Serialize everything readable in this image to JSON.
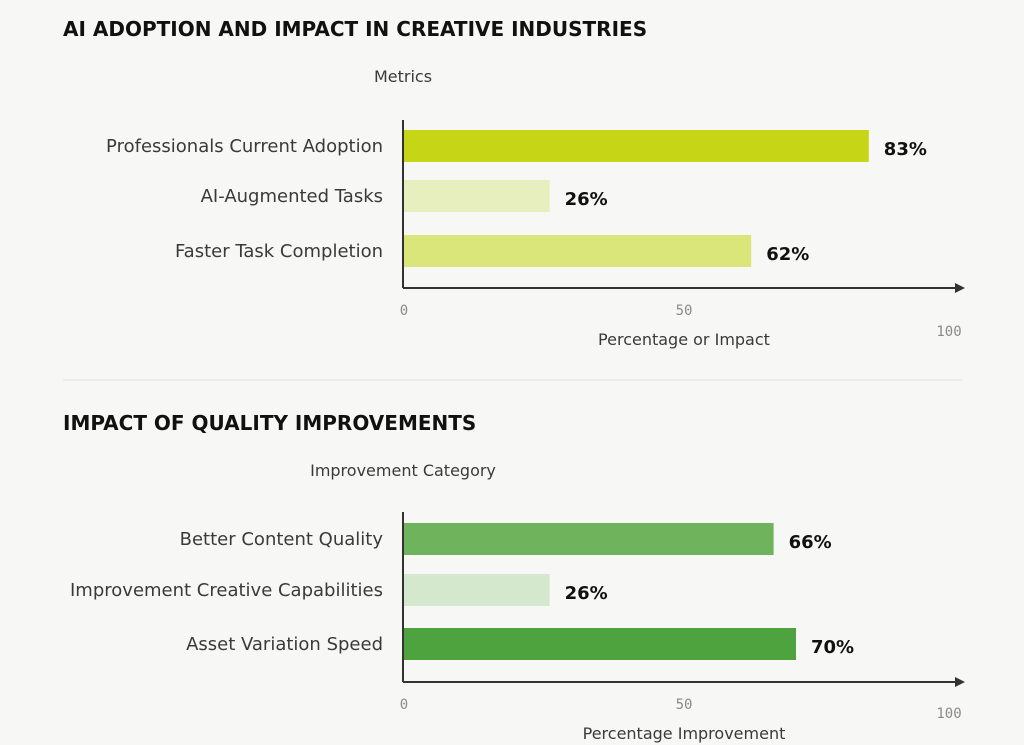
{
  "chart_data": [
    {
      "type": "bar",
      "orientation": "horizontal",
      "title": "AI ADOPTION AND IMPACT IN CREATIVE INDUSTRIES",
      "ylabel": "Metrics",
      "xlabel": "Percentage or Impact",
      "xlim": [
        0,
        100
      ],
      "ticks": [
        "0",
        "50",
        "100"
      ],
      "categories": [
        "Professionals Current Adoption",
        "AI-Augmented Tasks",
        "Faster Task Completion"
      ],
      "values": [
        83,
        26,
        62
      ],
      "value_labels": [
        "83%",
        "26%",
        "62%"
      ],
      "colors": [
        "#c6d617",
        "#e8efbe",
        "#dbe67a"
      ]
    },
    {
      "type": "bar",
      "orientation": "horizontal",
      "title": "IMPACT OF QUALITY IMPROVEMENTS",
      "ylabel": "Improvement Category",
      "xlabel": "Percentage Improvement",
      "xlim": [
        0,
        100
      ],
      "ticks": [
        "0",
        "50",
        "100"
      ],
      "categories": [
        "Better Content Quality",
        "Improvement Creative Capabilities",
        "Asset Variation Speed"
      ],
      "values": [
        66,
        26,
        70
      ],
      "value_labels": [
        "66%",
        "26%",
        "70%"
      ],
      "colors": [
        "#6fb35c",
        "#d3e8cc",
        "#4fa33e"
      ]
    }
  ]
}
